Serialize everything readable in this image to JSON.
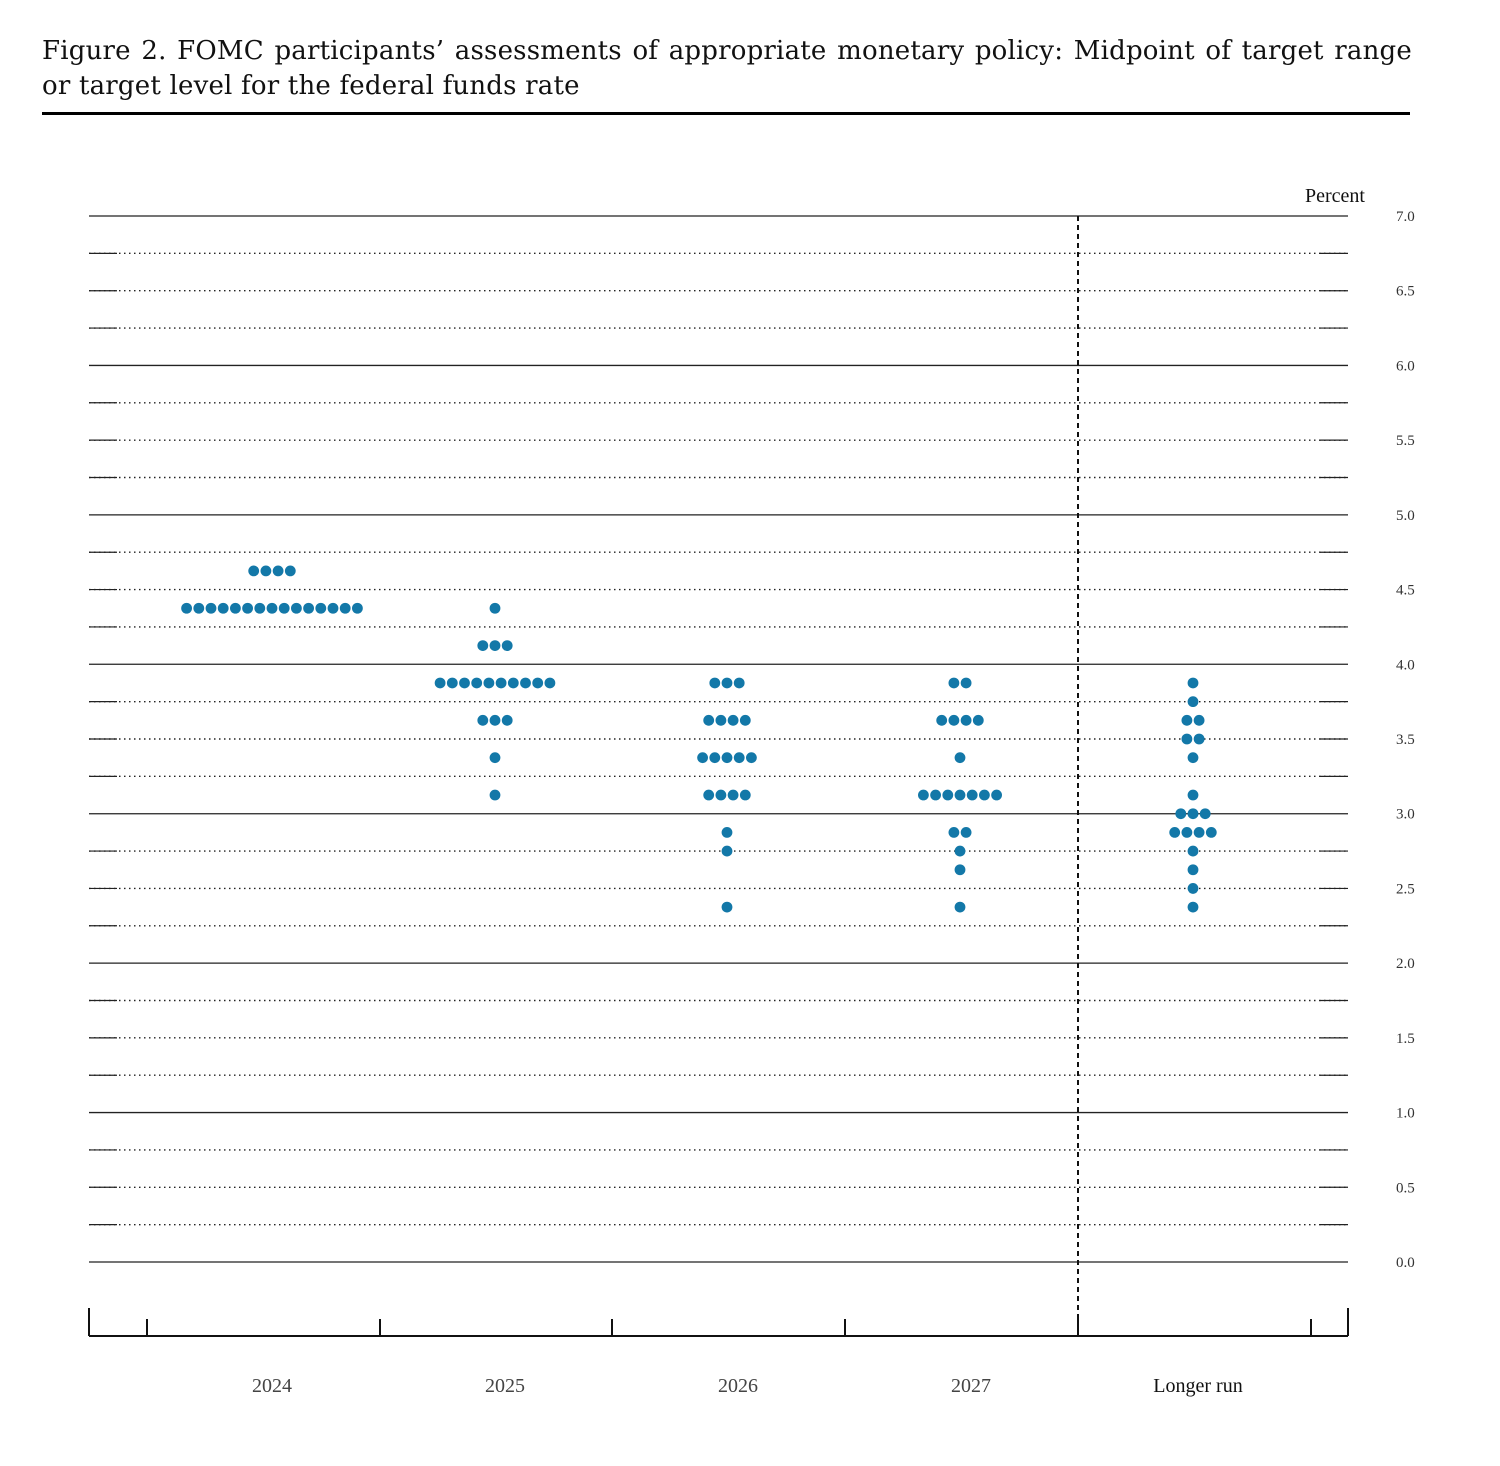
{
  "title": "Figure 2.  FOMC participants’ assessments of appropriate monetary policy: Midpoint of target range or target level for the federal funds rate",
  "chart_data": {
    "type": "scatter",
    "style": "dot plot",
    "unit_label": "Percent",
    "ylim": [
      0,
      7
    ],
    "y_ticks": [
      "7.0",
      "6.5",
      "6.0",
      "5.5",
      "5.0",
      "4.5",
      "4.0",
      "3.5",
      "3.0",
      "2.5",
      "2.0",
      "1.5",
      "1.0",
      "0.5",
      "0.0"
    ],
    "grid": "dotted every 0.25, solid every 1.0",
    "dot_color": "#1378a8",
    "categories": [
      "2024",
      "2025",
      "2026",
      "2027",
      "Longer run"
    ],
    "dots": [
      {
        "category": "2024",
        "points": [
          {
            "y": 4.625,
            "count": 4
          },
          {
            "y": 4.375,
            "count": 15
          }
        ]
      },
      {
        "category": "2025",
        "points": [
          {
            "y": 4.375,
            "count": 1
          },
          {
            "y": 4.125,
            "count": 3
          },
          {
            "y": 3.875,
            "count": 10
          },
          {
            "y": 3.625,
            "count": 3
          },
          {
            "y": 3.375,
            "count": 1
          },
          {
            "y": 3.125,
            "count": 1
          }
        ]
      },
      {
        "category": "2026",
        "points": [
          {
            "y": 3.875,
            "count": 3
          },
          {
            "y": 3.625,
            "count": 4
          },
          {
            "y": 3.375,
            "count": 5
          },
          {
            "y": 3.125,
            "count": 4
          },
          {
            "y": 2.875,
            "count": 1
          },
          {
            "y": 2.75,
            "count": 1
          },
          {
            "y": 2.375,
            "count": 1
          }
        ]
      },
      {
        "category": "2027",
        "points": [
          {
            "y": 3.875,
            "count": 2
          },
          {
            "y": 3.625,
            "count": 4
          },
          {
            "y": 3.375,
            "count": 1
          },
          {
            "y": 3.125,
            "count": 7
          },
          {
            "y": 2.875,
            "count": 2
          },
          {
            "y": 2.75,
            "count": 1
          },
          {
            "y": 2.625,
            "count": 1
          },
          {
            "y": 2.375,
            "count": 1
          }
        ]
      },
      {
        "category": "Longer run",
        "points": [
          {
            "y": 3.875,
            "count": 1
          },
          {
            "y": 3.75,
            "count": 1
          },
          {
            "y": 3.625,
            "count": 2
          },
          {
            "y": 3.5,
            "count": 2
          },
          {
            "y": 3.375,
            "count": 1
          },
          {
            "y": 3.125,
            "count": 1
          },
          {
            "y": 3.0,
            "count": 3
          },
          {
            "y": 2.875,
            "count": 4
          },
          {
            "y": 2.75,
            "count": 1
          },
          {
            "y": 2.625,
            "count": 1
          },
          {
            "y": 2.5,
            "count": 1
          },
          {
            "y": 2.375,
            "count": 1
          }
        ]
      }
    ]
  }
}
